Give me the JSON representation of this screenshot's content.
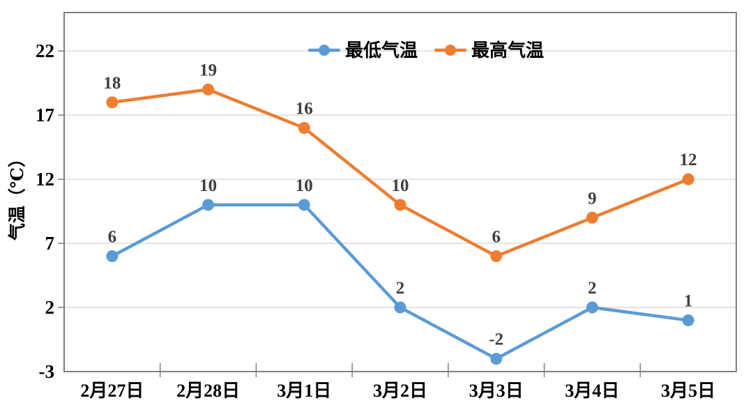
{
  "chart_data": {
    "type": "line",
    "title": "",
    "categories": [
      "2月27日",
      "2月28日",
      "3月1日",
      "3月2日",
      "3月3日",
      "3月4日",
      "3月5日"
    ],
    "series": [
      {
        "name": "最低气温",
        "key": "min-temp",
        "color": "#5B9BD5",
        "values": [
          6,
          10,
          10,
          2,
          -2,
          2,
          1
        ]
      },
      {
        "name": "最高气温",
        "key": "max-temp",
        "color": "#ED7D31",
        "values": [
          18,
          19,
          16,
          10,
          6,
          9,
          12
        ]
      }
    ],
    "xlabel": "",
    "ylabel": "气温（℃）",
    "yticks": [
      -3,
      2,
      7,
      12,
      17,
      22
    ],
    "ylim": [
      -3,
      25
    ],
    "grid": "horizontal",
    "show_data_labels": true,
    "legend_position": "top-center",
    "colors": {
      "axis": "#7F7F7F",
      "grid": "#DCDCDC",
      "data_label": "#404040",
      "tick_label": "#000000",
      "legend_text": "#000000",
      "background": "#FFFFFF"
    }
  }
}
